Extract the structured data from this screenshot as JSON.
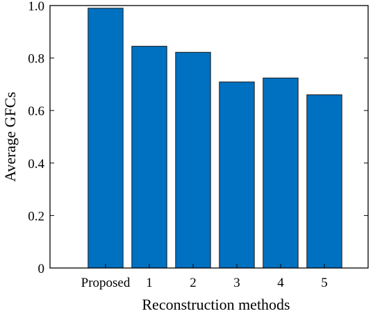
{
  "chart_data": {
    "type": "bar",
    "categories": [
      "Proposed",
      "1",
      "2",
      "3",
      "4",
      "5"
    ],
    "values": [
      0.99,
      0.845,
      0.822,
      0.709,
      0.724,
      0.66
    ],
    "xlabel": "Reconstruction methods",
    "ylabel": "Average GFCs",
    "ylim": [
      0,
      1.0
    ],
    "yticks": [
      "0",
      "0.2",
      "0.4",
      "0.6",
      "0.8",
      "1.0"
    ],
    "grid": false,
    "bar_color": "#0070C0",
    "bar_edge_color": "#1a1a1a"
  }
}
